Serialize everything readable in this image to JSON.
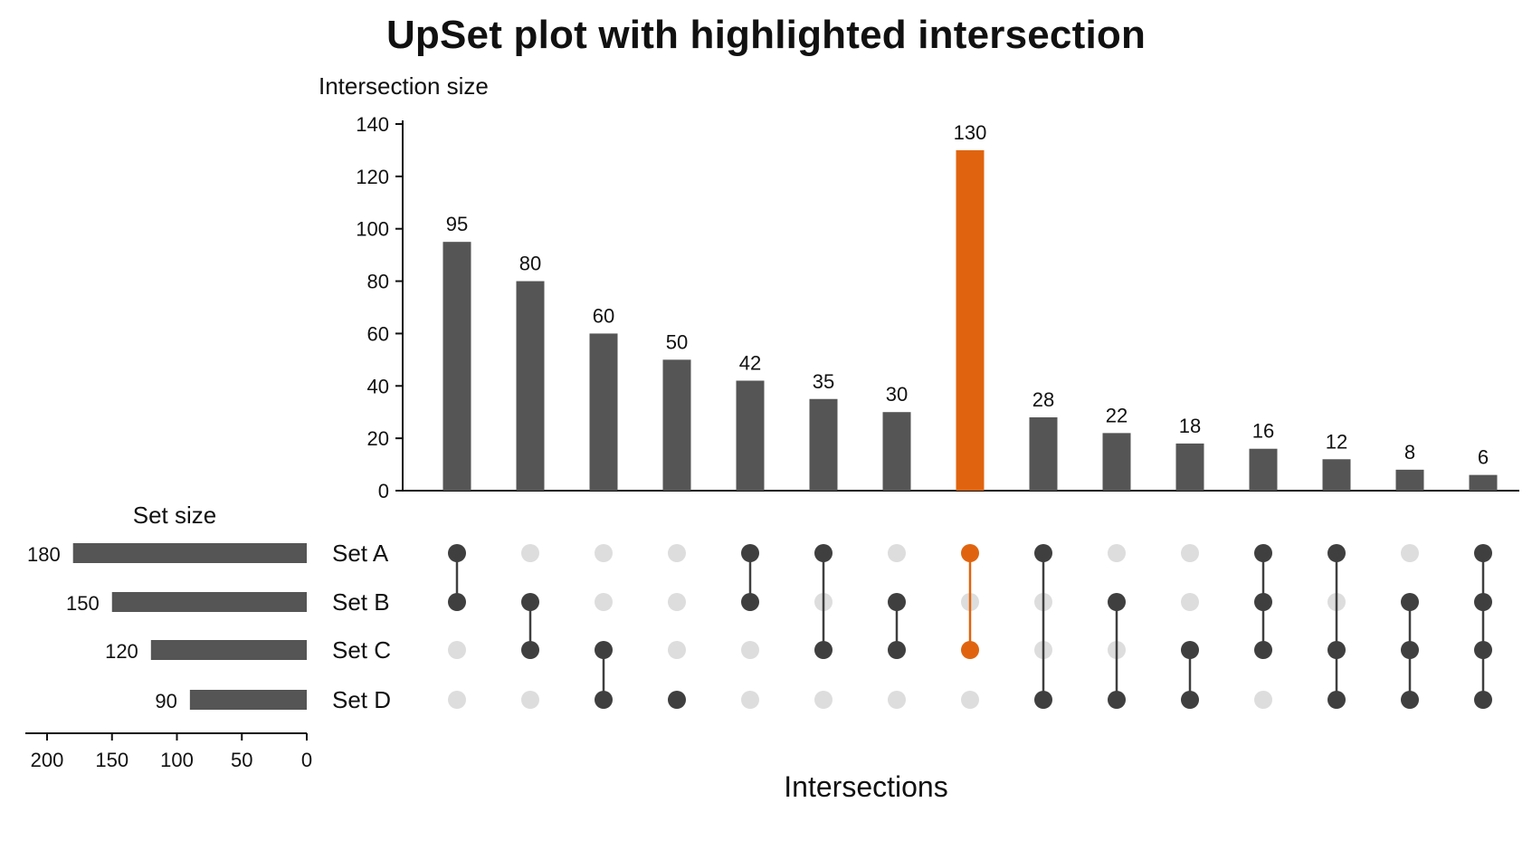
{
  "chart_data": {
    "type": "upset",
    "title": "UpSet plot with highlighted intersection",
    "ylabel": "Intersection size",
    "xlabel": "Intersections",
    "ylim": [
      0,
      140
    ],
    "yticks": [
      0,
      20,
      40,
      60,
      80,
      100,
      120,
      140
    ],
    "sets": [
      "Set A",
      "Set B",
      "Set C",
      "Set D"
    ],
    "set_sizes": [
      180,
      150,
      120,
      90
    ],
    "set_size_label": "Set size",
    "set_size_xlim": [
      200,
      0
    ],
    "set_size_ticks": [
      200,
      150,
      100,
      50,
      0
    ],
    "intersections": [
      {
        "members": [
          "Set A",
          "Set B"
        ],
        "value": 95
      },
      {
        "members": [
          "Set B",
          "Set C"
        ],
        "value": 80
      },
      {
        "members": [
          "Set C",
          "Set D"
        ],
        "value": 60
      },
      {
        "members": [
          "Set D"
        ],
        "value": 50
      },
      {
        "members": [
          "Set A",
          "Set B"
        ],
        "value": 42
      },
      {
        "members": [
          "Set A",
          "Set C"
        ],
        "value": 35
      },
      {
        "members": [
          "Set B",
          "Set C"
        ],
        "value": 30
      },
      {
        "members": [
          "Set A",
          "Set C"
        ],
        "value": 130,
        "highlighted": true
      },
      {
        "members": [
          "Set A",
          "Set D"
        ],
        "value": 28
      },
      {
        "members": [
          "Set B",
          "Set D"
        ],
        "value": 22
      },
      {
        "members": [
          "Set C",
          "Set D"
        ],
        "value": 18
      },
      {
        "members": [
          "Set A",
          "Set B",
          "Set C"
        ],
        "value": 16
      },
      {
        "members": [
          "Set A",
          "Set C",
          "Set D"
        ],
        "value": 12
      },
      {
        "members": [
          "Set B",
          "Set C",
          "Set D"
        ],
        "value": 8
      },
      {
        "members": [
          "Set A",
          "Set B",
          "Set C",
          "Set D"
        ],
        "value": 6
      }
    ],
    "grid": false,
    "colors": {
      "bar": "#555555",
      "highlight": "#e0640f",
      "dot_active": "#3f3f3f",
      "dot_inactive": "#dddddd",
      "axis": "#111111"
    }
  }
}
